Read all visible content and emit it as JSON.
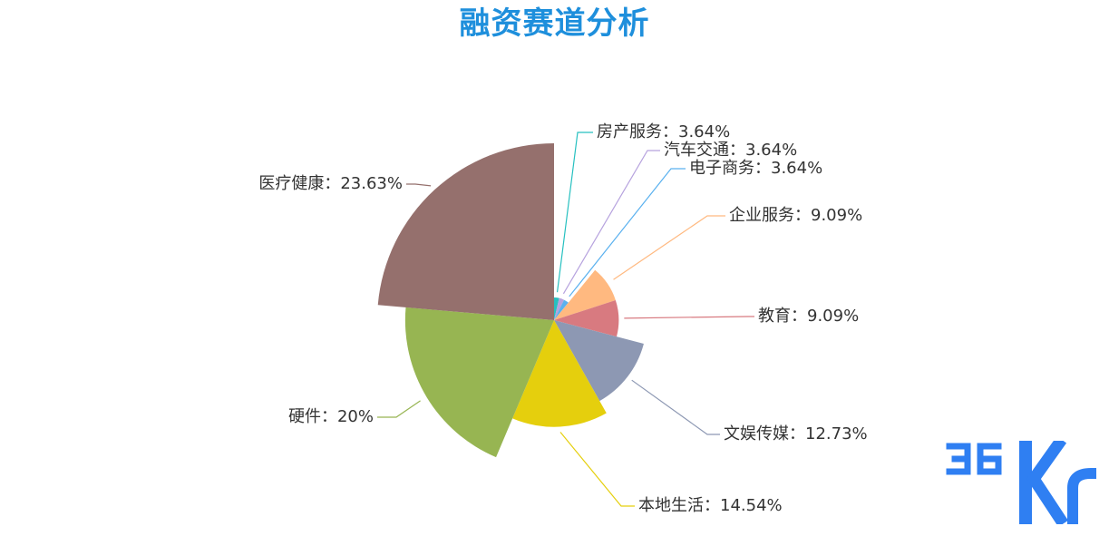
{
  "chart_data": {
    "type": "pie",
    "variant": "nightingale-rose",
    "title": "融资赛道分析",
    "slices": [
      {
        "name": "房产服务",
        "value": 3.64,
        "label": "房产服务：3.64%",
        "color": "#26c0c0"
      },
      {
        "name": "汽车交通",
        "value": 3.64,
        "label": "汽车交通：3.64%",
        "color": "#b6a2de"
      },
      {
        "name": "电子商务",
        "value": 3.64,
        "label": "电子商务：3.64%",
        "color": "#5ab1ef"
      },
      {
        "name": "企业服务",
        "value": 9.09,
        "label": "企业服务：9.09%",
        "color": "#ffb980"
      },
      {
        "name": "教育",
        "value": 9.09,
        "label": "教育：9.09%",
        "color": "#d87a80"
      },
      {
        "name": "文娱传媒",
        "value": 12.73,
        "label": "文娱传媒：12.73%",
        "color": "#8d98b3"
      },
      {
        "name": "本地生活",
        "value": 14.54,
        "label": "本地生活：14.54%",
        "color": "#e5cf0d"
      },
      {
        "name": "硬件",
        "value": 20,
        "label": "硬件：20%",
        "color": "#97b552"
      },
      {
        "name": "医疗健康",
        "value": 23.63,
        "label": "医疗健康：23.63%",
        "color": "#95706d"
      }
    ]
  },
  "colors": {
    "title": "#1e8fdc",
    "label_text": "#333333",
    "logo": "#2f7ff2"
  },
  "logo": {
    "text": "36Kr"
  }
}
